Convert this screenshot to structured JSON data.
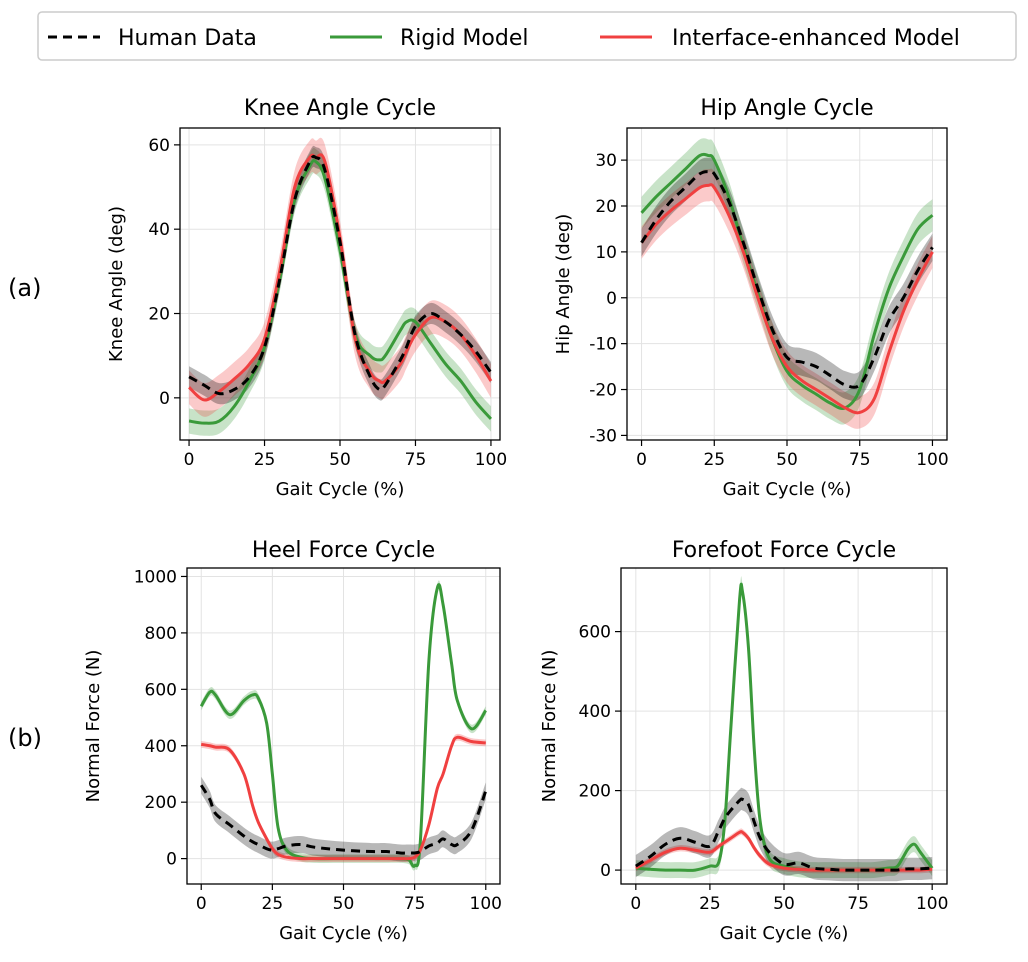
{
  "figure": {
    "panel_labels": [
      "(a)",
      "(b)"
    ],
    "legend": [
      {
        "label": "Human Data",
        "color": "#000000",
        "style": "dashed"
      },
      {
        "label": "Rigid Model",
        "color": "#3a9a3a",
        "style": "solid"
      },
      {
        "label": "Interface-enhanced Model",
        "color": "#f04040",
        "style": "solid"
      }
    ]
  },
  "chart_data": [
    {
      "type": "line",
      "title": "Knee Angle Cycle",
      "xlabel": "Gait Cycle (%)",
      "ylabel": "Knee Angle (deg)",
      "xlim": [
        -3,
        103
      ],
      "ylim": [
        -10,
        64
      ],
      "xticks": [
        0,
        25,
        50,
        75,
        100
      ],
      "yticks": [
        0,
        20,
        40,
        60
      ],
      "grid": true,
      "x": [
        0,
        5,
        10,
        15,
        20,
        25,
        30,
        35,
        40,
        42,
        45,
        50,
        55,
        60,
        63,
        65,
        70,
        72,
        75,
        80,
        85,
        90,
        95,
        100
      ],
      "series": [
        {
          "name": "Human Data",
          "values": [
            5,
            3,
            1,
            2,
            5,
            12,
            28,
            47,
            56,
            57,
            54,
            37,
            15,
            5,
            2,
            3,
            9,
            12,
            17,
            20,
            18,
            15,
            11,
            6
          ],
          "band": 2.5
        },
        {
          "name": "Rigid Model",
          "values": [
            -5.5,
            -6,
            -5.5,
            -2,
            4,
            12,
            28,
            47,
            55,
            56,
            52,
            35,
            15,
            10,
            9,
            10,
            16,
            18,
            18,
            13,
            8,
            4,
            -1,
            -5
          ],
          "band": 3
        },
        {
          "name": "Interface-enhanced Model",
          "values": [
            2.5,
            -0.5,
            1.5,
            4.5,
            8,
            14,
            30,
            50,
            57,
            57,
            56,
            38,
            14,
            6,
            4,
            4,
            8,
            11,
            15,
            19,
            18,
            15,
            10,
            4
          ],
          "band": 4
        }
      ]
    },
    {
      "type": "line",
      "title": "Hip Angle Cycle",
      "xlabel": "Gait Cycle (%)",
      "ylabel": "Hip Angle (deg)",
      "xlim": [
        -5,
        105
      ],
      "ylim": [
        -31,
        37
      ],
      "xticks": [
        0,
        25,
        50,
        75,
        100
      ],
      "yticks": [
        -30,
        -20,
        -10,
        0,
        10,
        20,
        30
      ],
      "grid": true,
      "x": [
        0,
        5,
        10,
        15,
        20,
        23,
        25,
        30,
        35,
        40,
        45,
        50,
        55,
        60,
        65,
        70,
        75,
        80,
        85,
        90,
        95,
        100
      ],
      "series": [
        {
          "name": "Human Data",
          "values": [
            12,
            17,
            21,
            24,
            27,
            27.5,
            27,
            21,
            12,
            2,
            -7,
            -13,
            -14,
            -15,
            -17,
            -19,
            -19,
            -13,
            -5,
            0,
            6,
            11
          ],
          "band": 3
        },
        {
          "name": "Rigid Model",
          "values": [
            18.5,
            22,
            25,
            28,
            31,
            31,
            30,
            22,
            11,
            1,
            -9,
            -16,
            -19,
            -21,
            -23,
            -24,
            -20,
            -8,
            2,
            9,
            15,
            18
          ],
          "band": 3.5
        },
        {
          "name": "Interface-enhanced Model",
          "values": [
            12,
            16,
            19,
            21.5,
            24,
            24.5,
            24,
            18,
            10,
            0,
            -9,
            -15,
            -18,
            -20,
            -22,
            -24,
            -25,
            -22,
            -12,
            -3,
            4,
            10
          ],
          "band": 3.5
        }
      ]
    },
    {
      "type": "line",
      "title": "Heel Force Cycle",
      "xlabel": "Gait Cycle (%)",
      "ylabel": "Normal Force (N)",
      "xlim": [
        -5,
        105
      ],
      "ylim": [
        -90,
        1030
      ],
      "xticks": [
        0,
        25,
        50,
        75,
        100
      ],
      "yticks": [
        0,
        200,
        400,
        600,
        800,
        1000
      ],
      "grid": true,
      "x": [
        0,
        3,
        5,
        10,
        15,
        18,
        20,
        23,
        25,
        27,
        30,
        35,
        40,
        50,
        60,
        65,
        70,
        73,
        75,
        77,
        80,
        83,
        85,
        88,
        90,
        95,
        100
      ],
      "series": [
        {
          "name": "Human Data",
          "values": [
            260,
            210,
            160,
            120,
            80,
            60,
            50,
            35,
            30,
            35,
            45,
            50,
            40,
            30,
            25,
            25,
            20,
            20,
            20,
            25,
            45,
            55,
            70,
            50,
            50,
            100,
            240
          ],
          "band": 30
        },
        {
          "name": "Rigid Model",
          "values": [
            540,
            590,
            580,
            510,
            560,
            580,
            570,
            480,
            300,
            110,
            30,
            5,
            0,
            0,
            0,
            0,
            0,
            -5,
            -25,
            60,
            700,
            960,
            900,
            690,
            560,
            460,
            525
          ],
          "band": 15
        },
        {
          "name": "Interface-enhanced Model",
          "values": [
            405,
            400,
            395,
            385,
            300,
            190,
            130,
            70,
            35,
            15,
            5,
            0,
            0,
            0,
            0,
            0,
            0,
            0,
            5,
            30,
            120,
            250,
            300,
            400,
            430,
            415,
            410
          ],
          "band": 12
        }
      ]
    },
    {
      "type": "line",
      "title": "Forefoot Force Cycle",
      "xlabel": "Gait Cycle (%)",
      "ylabel": "Normal Force (N)",
      "xlim": [
        -5,
        105
      ],
      "ylim": [
        -35,
        760
      ],
      "xticks": [
        0,
        25,
        50,
        75,
        100
      ],
      "yticks": [
        0,
        200,
        400,
        600
      ],
      "grid": true,
      "x": [
        0,
        5,
        10,
        15,
        20,
        25,
        28,
        30,
        32,
        35,
        36,
        38,
        40,
        42,
        45,
        50,
        55,
        60,
        65,
        70,
        75,
        80,
        85,
        88,
        90,
        92,
        94,
        96,
        100
      ],
      "series": [
        {
          "name": "Human Data",
          "values": [
            10,
            35,
            65,
            80,
            70,
            60,
            100,
            130,
            150,
            175,
            178,
            165,
            120,
            80,
            45,
            15,
            18,
            5,
            2,
            0,
            0,
            0,
            0,
            0,
            2,
            3,
            3,
            3,
            5
          ],
          "band": 28
        },
        {
          "name": "Rigid Model",
          "values": [
            5,
            2,
            0,
            0,
            0,
            10,
            20,
            120,
            350,
            680,
            700,
            560,
            300,
            120,
            30,
            10,
            2,
            0,
            0,
            0,
            0,
            0,
            5,
            8,
            30,
            55,
            65,
            45,
            5
          ],
          "band": 20
        },
        {
          "name": "Interface-enhanced Model",
          "values": [
            5,
            25,
            45,
            55,
            50,
            45,
            60,
            70,
            80,
            95,
            95,
            80,
            55,
            35,
            15,
            5,
            2,
            0,
            0,
            0,
            0,
            0,
            0,
            0,
            0,
            0,
            0,
            0,
            2
          ],
          "band": 8
        }
      ]
    }
  ]
}
